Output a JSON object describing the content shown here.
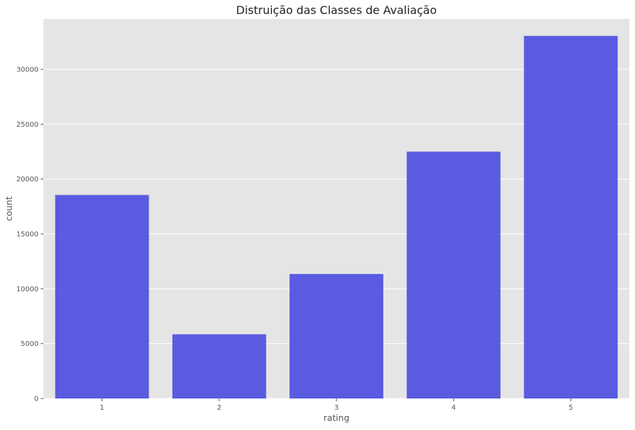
{
  "chart_data": {
    "type": "bar",
    "title": "Distruição das Classes de Avaliação",
    "xlabel": "rating",
    "ylabel": "count",
    "categories": [
      "1",
      "2",
      "3",
      "4",
      "5"
    ],
    "values": [
      18550,
      5850,
      11350,
      22500,
      33050
    ],
    "ylim": [
      0,
      34600
    ],
    "yticks": [
      0,
      5000,
      10000,
      15000,
      20000,
      25000,
      30000
    ],
    "grid": true,
    "colors": {
      "bar": "#4b4be0",
      "plot_background": "#e5e5e5",
      "grid": "#ffffff",
      "text": "#555555"
    }
  }
}
